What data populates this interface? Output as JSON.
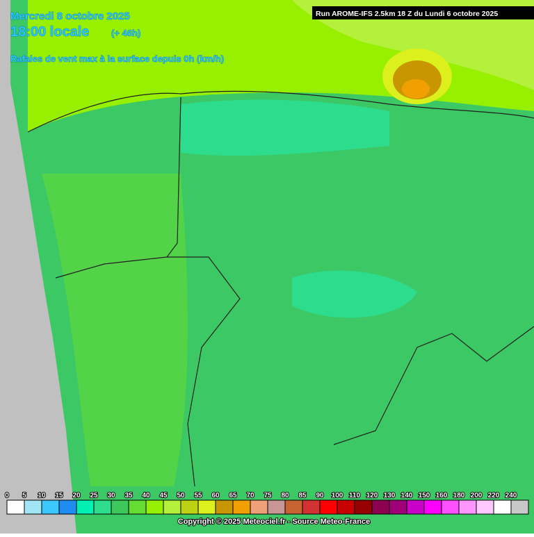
{
  "header": {
    "date": "Mercredi 8 octobre 2025",
    "time": "18:00 locale",
    "lead": "(+ 46h)",
    "parameter": "Rafales de vent max à la surface depuis 0h (km/h)",
    "run": "Run AROME-IFS 2.5km 18 Z du Lundi 6 octobre 2025"
  },
  "legend": {
    "items": [
      {
        "label": "0",
        "color": "#ffffff"
      },
      {
        "label": "5",
        "color": "#a0e6f5"
      },
      {
        "label": "10",
        "color": "#3cc8ff"
      },
      {
        "label": "15",
        "color": "#1e8cf0"
      },
      {
        "label": "20",
        "color": "#00f0b4"
      },
      {
        "label": "25",
        "color": "#2ddc8c"
      },
      {
        "label": "30",
        "color": "#3cc85a"
      },
      {
        "label": "35",
        "color": "#64dc32"
      },
      {
        "label": "40",
        "color": "#96f000"
      },
      {
        "label": "45",
        "color": "#b4f03c"
      },
      {
        "label": "50",
        "color": "#bed214"
      },
      {
        "label": "55",
        "color": "#dcf01e"
      },
      {
        "label": "60",
        "color": "#c89600"
      },
      {
        "label": "65",
        "color": "#f0a000"
      },
      {
        "label": "70",
        "color": "#f0a078"
      },
      {
        "label": "75",
        "color": "#c89696"
      },
      {
        "label": "80",
        "color": "#c86432"
      },
      {
        "label": "85",
        "color": "#d23232"
      },
      {
        "label": "90",
        "color": "#ff0000"
      },
      {
        "label": "100",
        "color": "#c80000"
      },
      {
        "label": "110",
        "color": "#960000"
      },
      {
        "label": "120",
        "color": "#8c0050"
      },
      {
        "label": "130",
        "color": "#a00078"
      },
      {
        "label": "140",
        "color": "#c800c8"
      },
      {
        "label": "150",
        "color": "#ff00ff"
      },
      {
        "label": "160",
        "color": "#ff50ff"
      },
      {
        "label": "180",
        "color": "#ff96ff"
      },
      {
        "label": "200",
        "color": "#ffc8ff"
      },
      {
        "label": "220",
        "color": "#ffffff"
      },
      {
        "label": "240",
        "color": "#c8c8c8"
      }
    ]
  },
  "footer": {
    "copyright": "Copyright © 2025 Meteociel.fr - Source Meteo-France"
  }
}
